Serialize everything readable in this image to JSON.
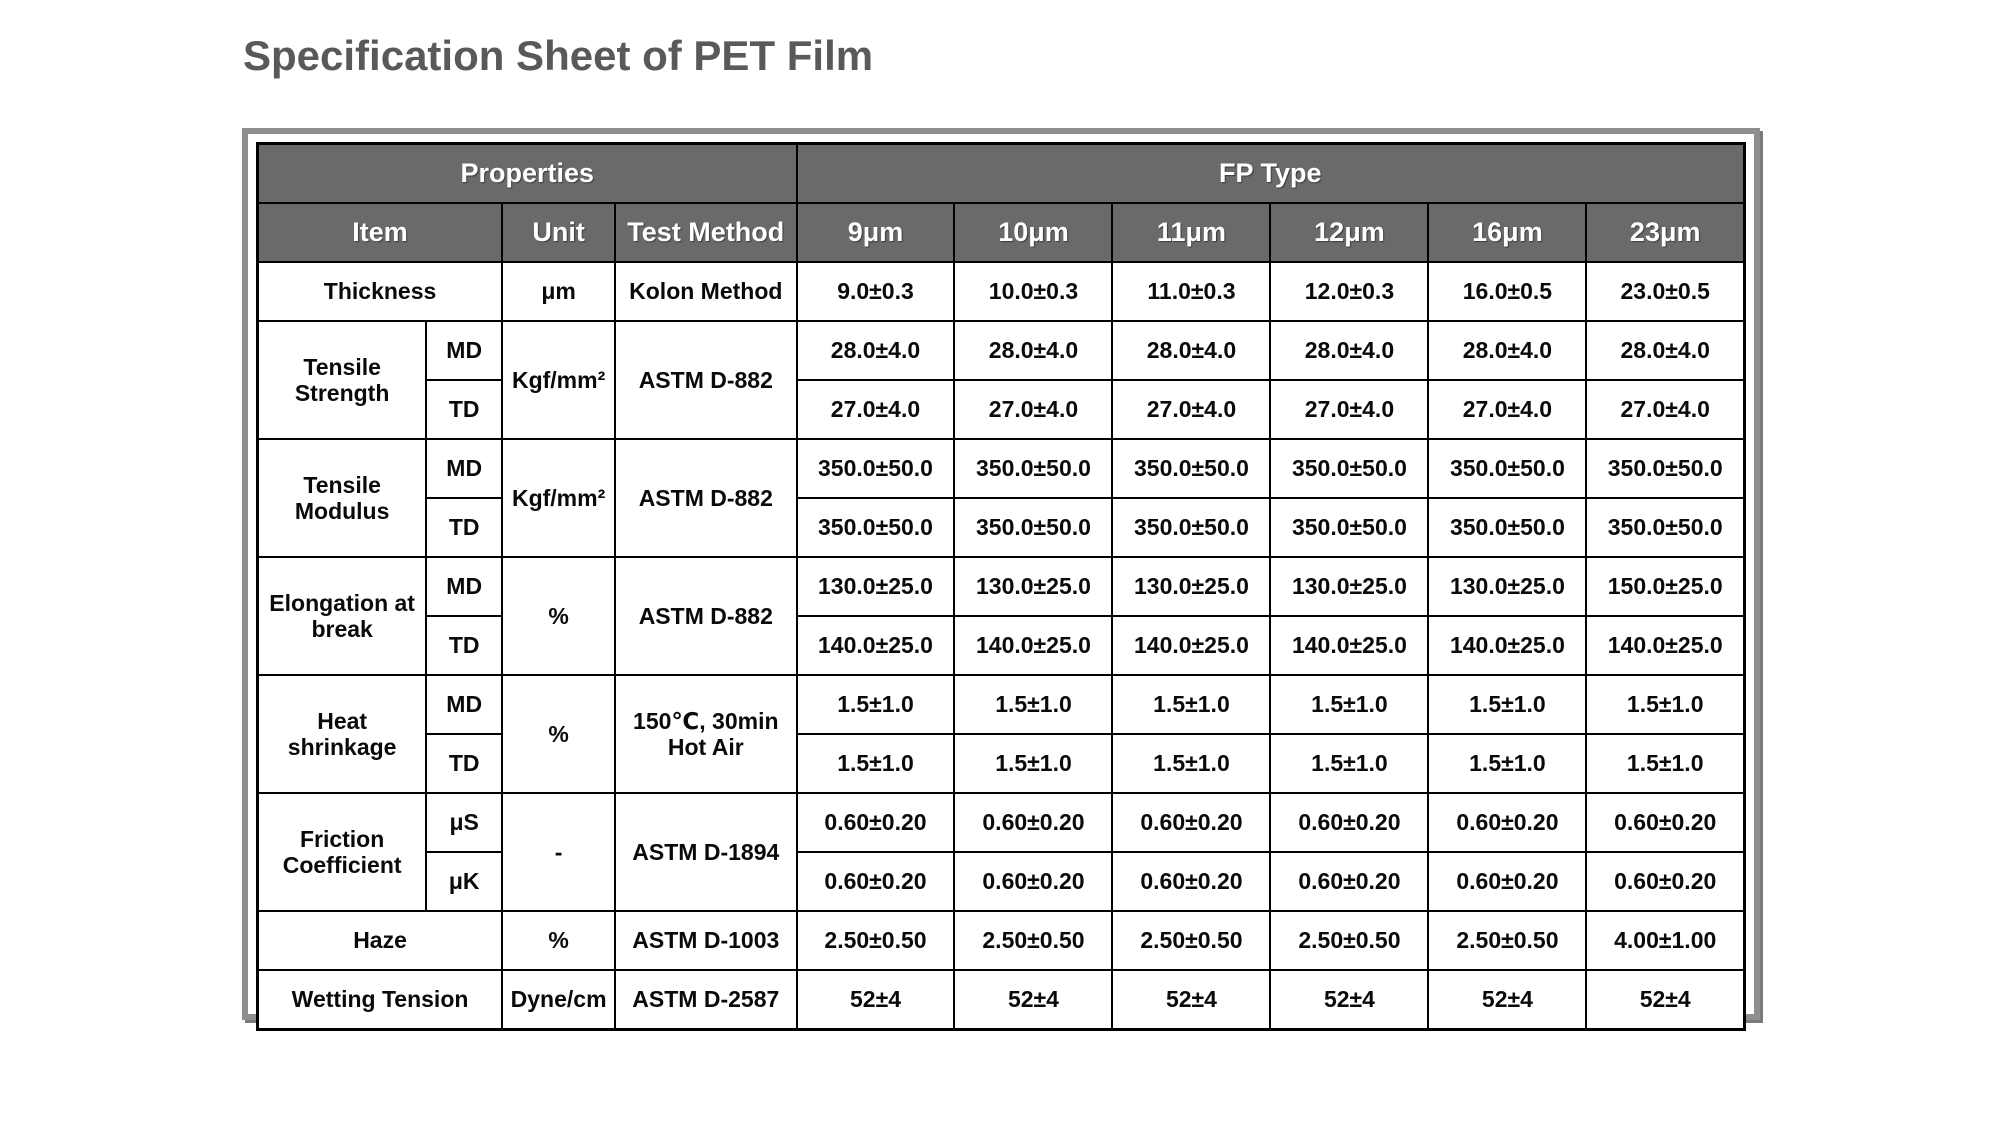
{
  "page": {
    "title": "Specification Sheet of PET Film"
  },
  "colors": {
    "header_bg": "#6a6a6a",
    "header_text": "#ffffff",
    "grid_border": "#000000",
    "frame_border": "#8f8f8f",
    "title_text": "#595959"
  },
  "table": {
    "header": {
      "properties_label": "Properties",
      "fp_type_label": "FP Type",
      "item_label": "Item",
      "unit_label": "Unit",
      "test_method_label": "Test Method",
      "type_columns": [
        "9μm",
        "10μm",
        "11μm",
        "12μm",
        "16μm",
        "23μm"
      ]
    },
    "sections": [
      {
        "item": "Thickness",
        "unit": "μm",
        "method": "Kolon Method",
        "values": [
          "9.0±0.3",
          "10.0±0.3",
          "11.0±0.3",
          "12.0±0.3",
          "16.0±0.5",
          "23.0±0.5"
        ]
      },
      {
        "item": "Tensile Strength",
        "sub1": "MD",
        "sub2": "TD",
        "unit": "Kgf/mm²",
        "method": "ASTM D-882",
        "row1": [
          "28.0±4.0",
          "28.0±4.0",
          "28.0±4.0",
          "28.0±4.0",
          "28.0±4.0",
          "28.0±4.0"
        ],
        "row2": [
          "27.0±4.0",
          "27.0±4.0",
          "27.0±4.0",
          "27.0±4.0",
          "27.0±4.0",
          "27.0±4.0"
        ]
      },
      {
        "item": "Tensile Modulus",
        "sub1": "MD",
        "sub2": "TD",
        "unit": "Kgf/mm²",
        "method": "ASTM D-882",
        "row1": [
          "350.0±50.0",
          "350.0±50.0",
          "350.0±50.0",
          "350.0±50.0",
          "350.0±50.0",
          "350.0±50.0"
        ],
        "row2": [
          "350.0±50.0",
          "350.0±50.0",
          "350.0±50.0",
          "350.0±50.0",
          "350.0±50.0",
          "350.0±50.0"
        ]
      },
      {
        "item": "Elongation at break",
        "sub1": "MD",
        "sub2": "TD",
        "unit": "%",
        "method": "ASTM D-882",
        "row1": [
          "130.0±25.0",
          "130.0±25.0",
          "130.0±25.0",
          "130.0±25.0",
          "130.0±25.0",
          "150.0±25.0"
        ],
        "row2": [
          "140.0±25.0",
          "140.0±25.0",
          "140.0±25.0",
          "140.0±25.0",
          "140.0±25.0",
          "140.0±25.0"
        ]
      },
      {
        "item": "Heat shrinkage",
        "sub1": "MD",
        "sub2": "TD",
        "unit": "%",
        "method": "150℃, 30min Hot Air",
        "row1": [
          "1.5±1.0",
          "1.5±1.0",
          "1.5±1.0",
          "1.5±1.0",
          "1.5±1.0",
          "1.5±1.0"
        ],
        "row2": [
          "1.5±1.0",
          "1.5±1.0",
          "1.5±1.0",
          "1.5±1.0",
          "1.5±1.0",
          "1.5±1.0"
        ]
      },
      {
        "item": "Friction Coefficient",
        "sub1": "μS",
        "sub2": "μK",
        "unit": "-",
        "method": "ASTM D-1894",
        "row1": [
          "0.60±0.20",
          "0.60±0.20",
          "0.60±0.20",
          "0.60±0.20",
          "0.60±0.20",
          "0.60±0.20"
        ],
        "row2": [
          "0.60±0.20",
          "0.60±0.20",
          "0.60±0.20",
          "0.60±0.20",
          "0.60±0.20",
          "0.60±0.20"
        ]
      },
      {
        "item": "Haze",
        "unit": "%",
        "method": "ASTM D-1003",
        "values": [
          "2.50±0.50",
          "2.50±0.50",
          "2.50±0.50",
          "2.50±0.50",
          "2.50±0.50",
          "4.00±1.00"
        ]
      },
      {
        "item": "Wetting Tension",
        "unit": "Dyne/cm",
        "method": "ASTM D-2587",
        "values": [
          "52±4",
          "52±4",
          "52±4",
          "52±4",
          "52±4",
          "52±4"
        ]
      }
    ]
  }
}
